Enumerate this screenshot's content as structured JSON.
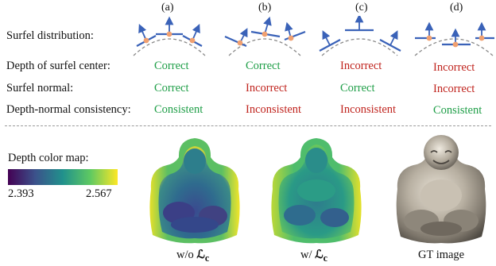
{
  "columns": [
    "(a)",
    "(b)",
    "(c)",
    "(d)"
  ],
  "rows": {
    "distribution_label": "Surfel distribution:",
    "depth_label": "Depth of surfel center:",
    "normal_label": "Surfel normal:",
    "consistency_label": "Depth-normal consistency:"
  },
  "depth_values": [
    "Correct",
    "Correct",
    "Incorrect",
    "Incorrect"
  ],
  "normal_values": [
    "Correct",
    "Incorrect",
    "Correct",
    "Incorrect"
  ],
  "consistency_values": [
    "Consistent",
    "Inconsistent",
    "Inconsistent",
    "Consistent"
  ],
  "colors": {
    "correct": "#1e9e47",
    "incorrect": "#c0241e",
    "surfel": "#3a62b8",
    "center": "#f0a070",
    "arc": "#8a8a8a"
  },
  "colormap": {
    "title": "Depth color map:",
    "min": "2.393",
    "max": "2.567",
    "name": "viridis"
  },
  "captions": {
    "without": "w/o ",
    "with": "w/ ",
    "loss_symbol": "ℒ",
    "loss_sub": "c",
    "gt": "GT image"
  }
}
